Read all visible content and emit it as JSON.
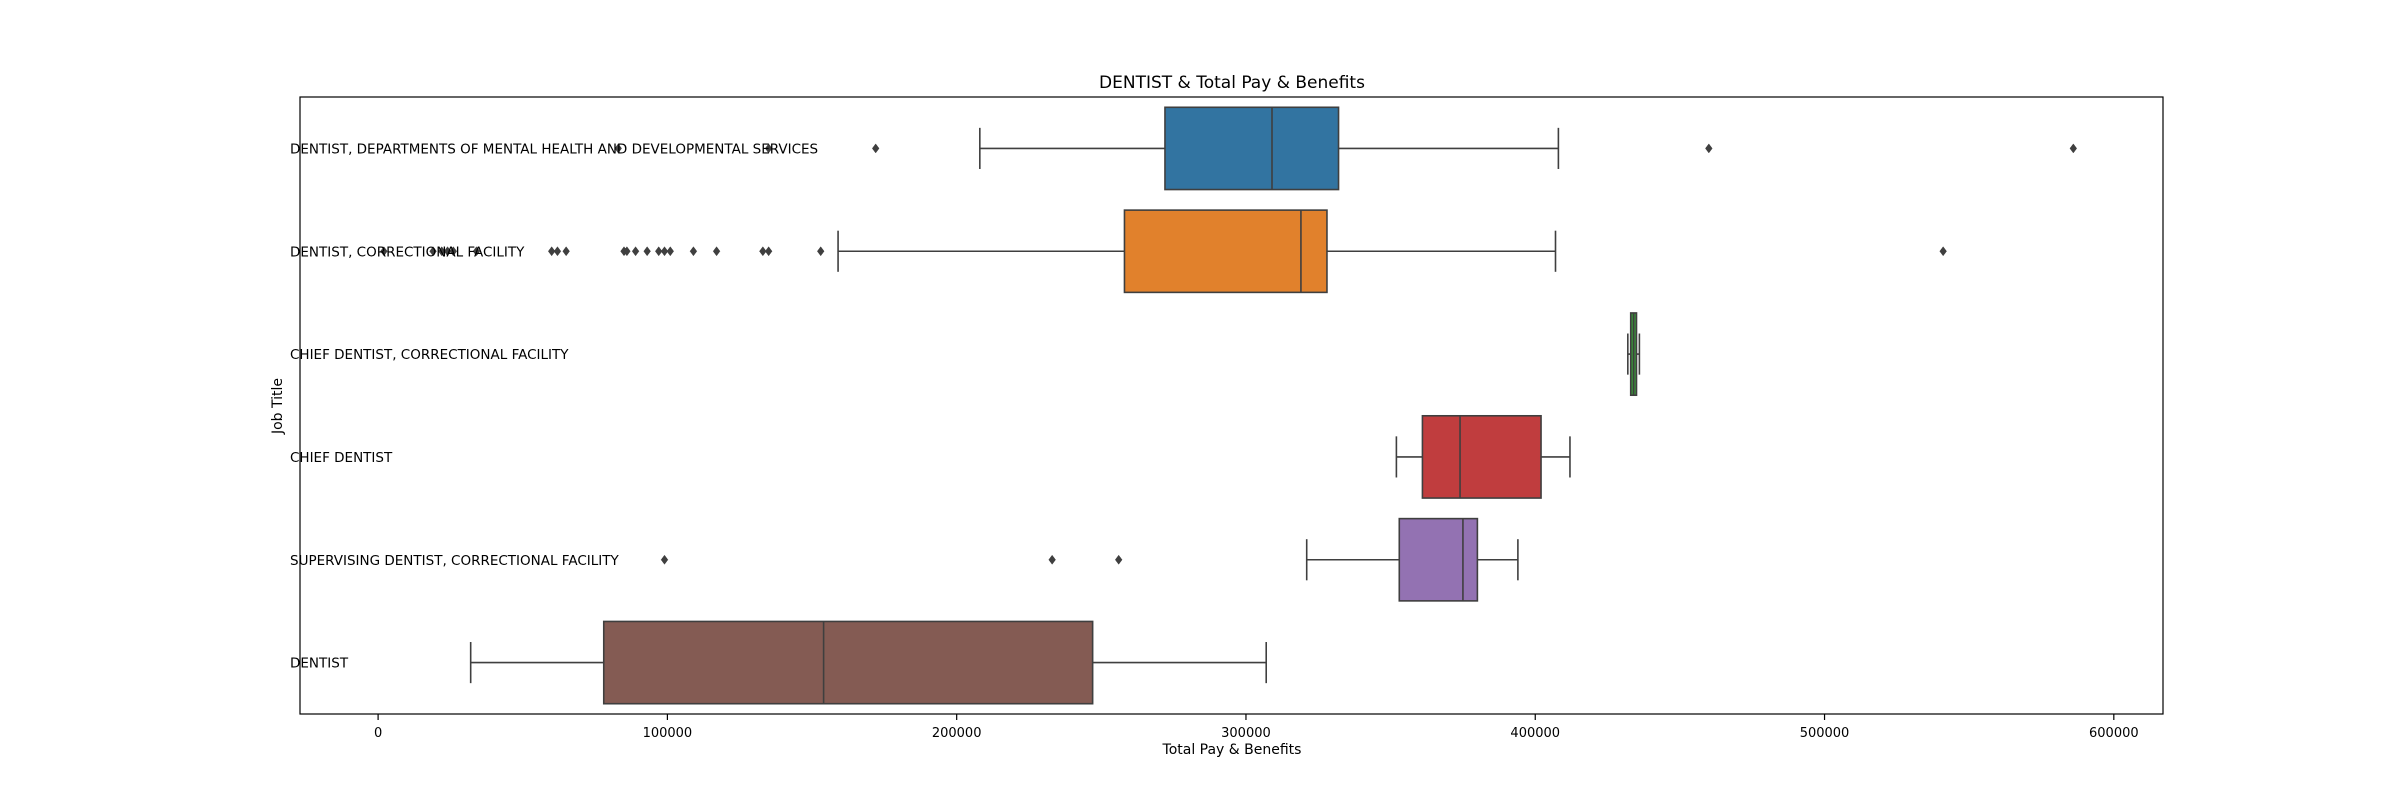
{
  "chart_data": {
    "type": "box",
    "orientation": "horizontal",
    "title": "DENTIST & Total Pay & Benefits",
    "xlabel": "Total Pay & Benefits",
    "ylabel": "Job Title",
    "xlim": [
      -27000,
      617000
    ],
    "xticks": [
      0,
      100000,
      200000,
      300000,
      400000,
      500000,
      600000
    ],
    "grid": false,
    "legend": "none",
    "boxes": [
      {
        "category": "DENTIST, DEPARTMENTS OF MENTAL HEALTH AND DEVELOPMENTAL SERVICES",
        "color": "#3274a1",
        "whisker_low": 208000,
        "q1": 272000,
        "median": 309000,
        "q3": 332000,
        "whisker_high": 408000,
        "outliers": [
          83000,
          135000,
          172000,
          460000,
          586000
        ]
      },
      {
        "category": "DENTIST, CORRECTIONAL FACILITY",
        "color": "#e1812c",
        "whisker_low": 159000,
        "q1": 258000,
        "median": 319000,
        "q3": 328000,
        "whisker_high": 407000,
        "outliers": [
          2000,
          19000,
          22000,
          24000,
          26000,
          34000,
          60000,
          62000,
          65000,
          85000,
          86000,
          89000,
          93000,
          97000,
          99000,
          101000,
          109000,
          117000,
          133000,
          135000,
          153000,
          541000
        ]
      },
      {
        "category": "CHIEF DENTIST, CORRECTIONAL FACILITY",
        "color": "#3a923a",
        "whisker_low": 432000,
        "q1": 433000,
        "median": 434000,
        "q3": 435000,
        "whisker_high": 436000,
        "outliers": []
      },
      {
        "category": "CHIEF DENTIST",
        "color": "#c03d3e",
        "whisker_low": 352000,
        "q1": 361000,
        "median": 374000,
        "q3": 402000,
        "whisker_high": 412000,
        "outliers": []
      },
      {
        "category": "SUPERVISING DENTIST, CORRECTIONAL FACILITY",
        "color": "#9372b2",
        "whisker_low": 321000,
        "q1": 353000,
        "median": 375000,
        "q3": 380000,
        "whisker_high": 394000,
        "outliers": [
          99000,
          233000,
          256000
        ]
      },
      {
        "category": "DENTIST",
        "color": "#845b53",
        "whisker_low": 32000,
        "q1": 78000,
        "median": 154000,
        "q3": 247000,
        "whisker_high": 307000,
        "outliers": []
      }
    ]
  }
}
